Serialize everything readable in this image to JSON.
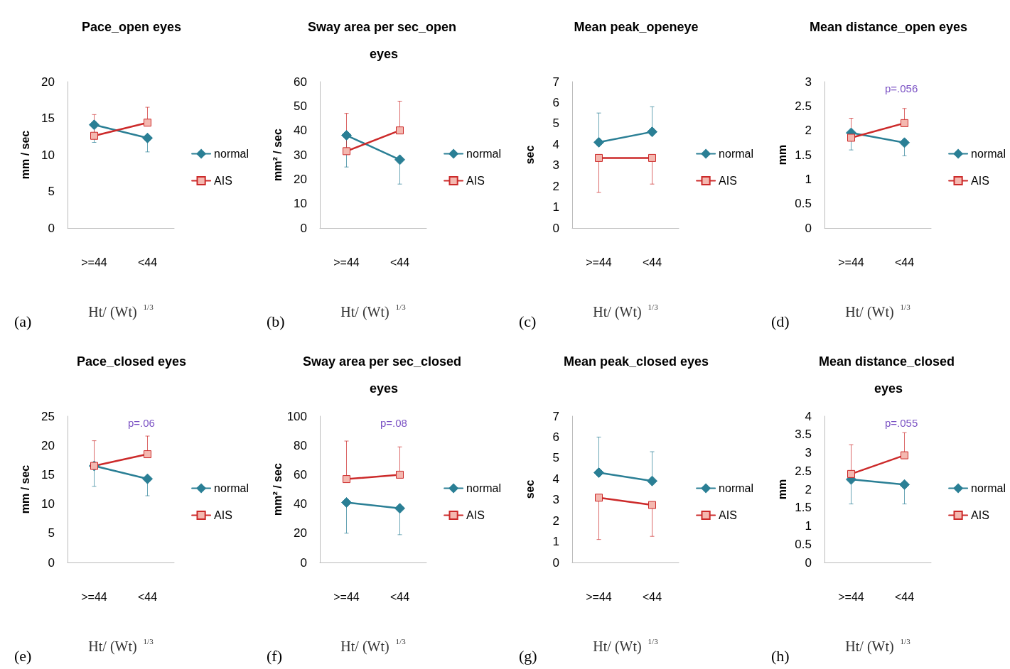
{
  "chart_data": [
    {
      "type": "line",
      "title": "Pace_open eyes",
      "ylabel": "mm / sec",
      "xlabel": "Ht/ (Wt) $^{1/3}$",
      "categories": [
        ">=44",
        "<44"
      ],
      "ylim": [
        0,
        20
      ],
      "yticks": [
        0,
        5,
        10,
        15,
        20
      ],
      "legend": "right",
      "annotations": [
        "(a)"
      ],
      "series": [
        {
          "name": "normal",
          "color": "#2a7f95",
          "marker": "diamond",
          "values": [
            14.1,
            12.3
          ],
          "errors": [
            [
              11.7,
              14.1
            ],
            [
              10.4,
              12.3
            ]
          ]
        },
        {
          "name": "AIS",
          "color": "#cc2a2a",
          "marker": "square",
          "values": [
            12.6,
            14.4
          ],
          "errors": [
            [
              12.6,
              15.5
            ],
            [
              14.4,
              16.5
            ]
          ]
        }
      ]
    },
    {
      "type": "line",
      "title": "Sway area per sec_open eyes",
      "ylabel": "mm² / sec",
      "xlabel": "Ht/ (Wt) $^{1/3}$",
      "categories": [
        ">=44",
        "<44"
      ],
      "ylim": [
        0,
        60
      ],
      "yticks": [
        0,
        10,
        20,
        30,
        40,
        50,
        60
      ],
      "legend": "right",
      "annotations": [
        "(b)"
      ],
      "series": [
        {
          "name": "normal",
          "color": "#2a7f95",
          "marker": "diamond",
          "values": [
            38,
            28
          ],
          "errors": [
            [
              25,
              38
            ],
            [
              18,
              28
            ]
          ]
        },
        {
          "name": "AIS",
          "color": "#cc2a2a",
          "marker": "square",
          "values": [
            31.5,
            40
          ],
          "errors": [
            [
              31.5,
              47
            ],
            [
              40,
              52
            ]
          ]
        }
      ]
    },
    {
      "type": "line",
      "title": "Mean peak_openeye",
      "ylabel": "sec",
      "xlabel": "Ht/ (Wt) $^{1/3}$",
      "categories": [
        ">=44",
        "<44"
      ],
      "ylim": [
        0,
        7
      ],
      "yticks": [
        0,
        1,
        2,
        3,
        4,
        5,
        6,
        7
      ],
      "legend": "right",
      "annotations": [
        "(c)"
      ],
      "series": [
        {
          "name": "normal",
          "color": "#2a7f95",
          "marker": "diamond",
          "values": [
            4.1,
            4.6
          ],
          "errors": [
            [
              4.1,
              5.5
            ],
            [
              4.6,
              5.8
            ]
          ]
        },
        {
          "name": "AIS",
          "color": "#cc2a2a",
          "marker": "square",
          "values": [
            3.35,
            3.35
          ],
          "errors": [
            [
              1.7,
              3.35
            ],
            [
              2.1,
              3.35
            ]
          ]
        }
      ]
    },
    {
      "type": "line",
      "title": "Mean distance_open eyes",
      "ylabel": "mm",
      "xlabel": "Ht/ (Wt) $^{1/3}$",
      "categories": [
        ">=44",
        "<44"
      ],
      "ylim": [
        0,
        3
      ],
      "yticks": [
        0,
        0.5,
        1,
        1.5,
        2,
        2.5,
        3
      ],
      "legend": "right",
      "annotations": [
        "(d)",
        "p=.056"
      ],
      "series": [
        {
          "name": "normal",
          "color": "#2a7f95",
          "marker": "diamond",
          "values": [
            1.95,
            1.75
          ],
          "errors": [
            [
              1.6,
              1.95
            ],
            [
              1.48,
              1.75
            ]
          ]
        },
        {
          "name": "AIS",
          "color": "#cc2a2a",
          "marker": "square",
          "values": [
            1.85,
            2.15
          ],
          "errors": [
            [
              1.85,
              2.25
            ],
            [
              2.15,
              2.45
            ]
          ]
        }
      ]
    },
    {
      "type": "line",
      "title": "Pace_closed eyes",
      "ylabel": "mm / sec",
      "xlabel": "Ht/ (Wt) $^{1/3}$",
      "categories": [
        ">=44",
        "<44"
      ],
      "ylim": [
        0,
        25
      ],
      "yticks": [
        0,
        5,
        10,
        15,
        20,
        25
      ],
      "legend": "right",
      "annotations": [
        "(e)",
        "p=.06"
      ],
      "series": [
        {
          "name": "normal",
          "color": "#2a7f95",
          "marker": "diamond",
          "values": [
            16.5,
            14.3
          ],
          "errors": [
            [
              13,
              16.5
            ],
            [
              11.4,
              14.3
            ]
          ]
        },
        {
          "name": "AIS",
          "color": "#cc2a2a",
          "marker": "square",
          "values": [
            16.5,
            18.5
          ],
          "errors": [
            [
              16.5,
              20.8
            ],
            [
              18.5,
              21.6
            ]
          ]
        }
      ]
    },
    {
      "type": "line",
      "title": "Sway area per sec_closed eyes",
      "ylabel": "mm² / sec",
      "xlabel": "Ht/ (Wt) $^{1/3}$",
      "categories": [
        ">=44",
        "<44"
      ],
      "ylim": [
        0,
        100
      ],
      "yticks": [
        0,
        20,
        40,
        60,
        80,
        100
      ],
      "legend": "right",
      "annotations": [
        "(f)",
        "p=.08"
      ],
      "series": [
        {
          "name": "normal",
          "color": "#2a7f95",
          "marker": "diamond",
          "values": [
            41,
            37
          ],
          "errors": [
            [
              20,
              41
            ],
            [
              19,
              37
            ]
          ]
        },
        {
          "name": "AIS",
          "color": "#cc2a2a",
          "marker": "square",
          "values": [
            57,
            60
          ],
          "errors": [
            [
              57,
              83
            ],
            [
              60,
              79
            ]
          ]
        }
      ]
    },
    {
      "type": "line",
      "title": "Mean peak_closed eyes",
      "ylabel": "sec",
      "xlabel": "Ht/ (Wt) $^{1/3}$",
      "categories": [
        ">=44",
        "<44"
      ],
      "ylim": [
        0,
        7
      ],
      "yticks": [
        0,
        1,
        2,
        3,
        4,
        5,
        6,
        7
      ],
      "legend": "right",
      "annotations": [
        "(g)"
      ],
      "series": [
        {
          "name": "normal",
          "color": "#2a7f95",
          "marker": "diamond",
          "values": [
            4.3,
            3.9
          ],
          "errors": [
            [
              4.3,
              6
            ],
            [
              3.9,
              5.3
            ]
          ]
        },
        {
          "name": "AIS",
          "color": "#cc2a2a",
          "marker": "square",
          "values": [
            3.1,
            2.75
          ],
          "errors": [
            [
              1.1,
              3.1
            ],
            [
              1.25,
              2.75
            ]
          ]
        }
      ]
    },
    {
      "type": "line",
      "title": "Mean distance_closed eyes",
      "ylabel": "mm",
      "xlabel": "Ht/ (Wt) $^{1/3}$",
      "categories": [
        ">=44",
        "<44"
      ],
      "ylim": [
        0,
        4
      ],
      "yticks": [
        0,
        0.5,
        1,
        1.5,
        2,
        2.5,
        3,
        3.5,
        4
      ],
      "legend": "right",
      "annotations": [
        "(h)",
        "p=.055"
      ],
      "series": [
        {
          "name": "normal",
          "color": "#2a7f95",
          "marker": "diamond",
          "values": [
            2.27,
            2.13
          ],
          "errors": [
            [
              1.6,
              2.27
            ],
            [
              1.6,
              2.13
            ]
          ]
        },
        {
          "name": "AIS",
          "color": "#cc2a2a",
          "marker": "square",
          "values": [
            2.42,
            2.93
          ],
          "errors": [
            [
              2.42,
              3.22
            ],
            [
              2.93,
              3.55
            ]
          ]
        }
      ]
    }
  ]
}
